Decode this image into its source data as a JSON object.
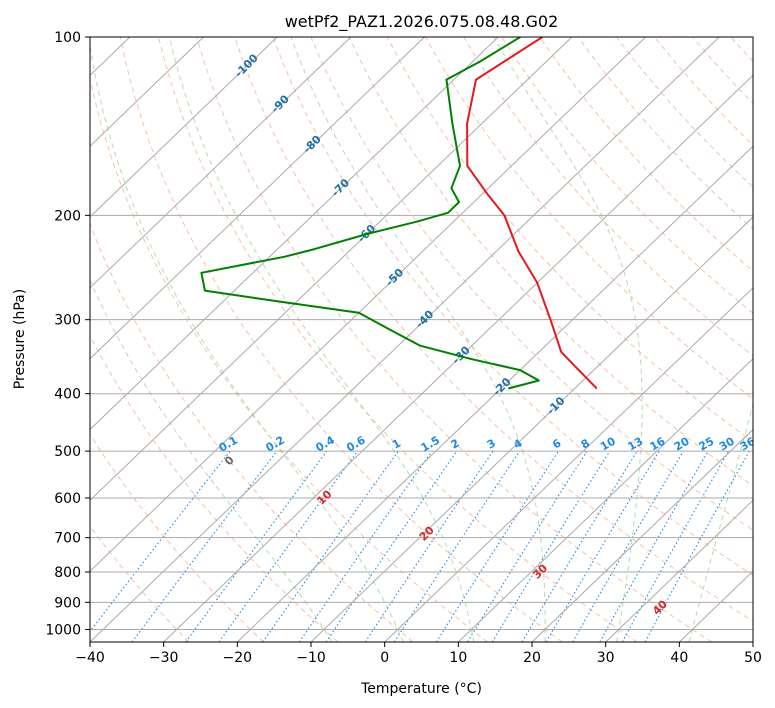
{
  "chart_data": {
    "type": "line",
    "chart_kind": "skew-T log-P diagram",
    "title": "wetPf2_PAZ1.2026.075.08.48.G02",
    "xlabel": "Temperature (°C)",
    "ylabel": "Pressure (hPa)",
    "xlim": [
      -40,
      50
    ],
    "ylim": [
      1050,
      100
    ],
    "y_scale": "log",
    "x_ticks": [
      -40,
      -30,
      -20,
      -10,
      0,
      10,
      20,
      30,
      40,
      50
    ],
    "y_ticks": [
      100,
      200,
      300,
      400,
      500,
      600,
      700,
      800,
      900,
      1000
    ],
    "grid": true,
    "series": [
      {
        "key": "temperature",
        "color": "#e41a1c",
        "points": [
          {
            "p": 100,
            "t": -64
          },
          {
            "p": 118,
            "t": -67
          },
          {
            "p": 140,
            "t": -62
          },
          {
            "p": 165,
            "t": -56
          },
          {
            "p": 185,
            "t": -49
          },
          {
            "p": 200,
            "t": -44
          },
          {
            "p": 230,
            "t": -37
          },
          {
            "p": 260,
            "t": -30
          },
          {
            "p": 300,
            "t": -23
          },
          {
            "p": 340,
            "t": -17
          },
          {
            "p": 360,
            "t": -13
          },
          {
            "p": 392,
            "t": -7
          }
        ]
      },
      {
        "key": "dewpoint",
        "color": "#008000",
        "points": [
          {
            "p": 100,
            "t": -67
          },
          {
            "p": 110,
            "t": -69
          },
          {
            "p": 118,
            "t": -71
          },
          {
            "p": 140,
            "t": -64
          },
          {
            "p": 165,
            "t": -57
          },
          {
            "p": 180,
            "t": -55
          },
          {
            "p": 190,
            "t": -52
          },
          {
            "p": 198,
            "t": -52
          },
          {
            "p": 205,
            "t": -55
          },
          {
            "p": 215,
            "t": -60
          },
          {
            "p": 228,
            "t": -65
          },
          {
            "p": 235,
            "t": -68
          },
          {
            "p": 250,
            "t": -77
          },
          {
            "p": 268,
            "t": -74
          },
          {
            "p": 280,
            "t": -62
          },
          {
            "p": 292,
            "t": -50
          },
          {
            "p": 310,
            "t": -44
          },
          {
            "p": 332,
            "t": -37
          },
          {
            "p": 350,
            "t": -28
          },
          {
            "p": 365,
            "t": -20
          },
          {
            "p": 380,
            "t": -16
          },
          {
            "p": 392,
            "t": -19
          }
        ]
      }
    ],
    "background_lines": {
      "isotherms": [
        -130,
        -120,
        -110,
        -100,
        -90,
        -80,
        -70,
        -60,
        -50,
        -40,
        -30,
        -20,
        -10,
        0,
        10,
        20,
        30,
        40,
        50
      ],
      "dry_adiabats_theta_c": [
        -30,
        -20,
        -10,
        0,
        10,
        20,
        30,
        40,
        50,
        60,
        70,
        80,
        90,
        100,
        110,
        120,
        130,
        140,
        150,
        160,
        170,
        180,
        190,
        200
      ],
      "moist_adiabats_c": [
        -10,
        0,
        10,
        20,
        30,
        40
      ],
      "mixing_ratio_gkg": [
        0.1,
        0.2,
        0.4,
        0.6,
        1,
        1.5,
        2,
        3,
        4,
        6,
        8,
        10,
        13,
        16,
        20,
        25,
        30,
        36
      ]
    },
    "isotherm_labels": [
      "-100",
      "-90",
      "-80",
      "-70",
      "-60",
      "-50",
      "-40",
      "-30",
      "-20",
      "-10"
    ],
    "mixing_ratio_labels": [
      "0.1",
      "0.2",
      "0.4",
      "0.6",
      "1",
      "1.5",
      "2",
      "3",
      "4",
      "6",
      "8",
      "10",
      "13",
      "16",
      "20",
      "25",
      "30",
      "36"
    ],
    "theta_labels": [
      "0",
      "10",
      "20",
      "30",
      "40"
    ],
    "colors": {
      "isotherm": "#aaaaaa",
      "isobar": "#aaaaaa",
      "dry_adiabat": "#f4a582",
      "moist_adiabat": "#a6d5a6",
      "mixing_ratio": "#1e88e5",
      "isotherm_label": "#1f6fa8",
      "mixing_ratio_label": "#1e88e5",
      "theta_label_zero": "#666666",
      "theta_label": "#d62728"
    }
  }
}
